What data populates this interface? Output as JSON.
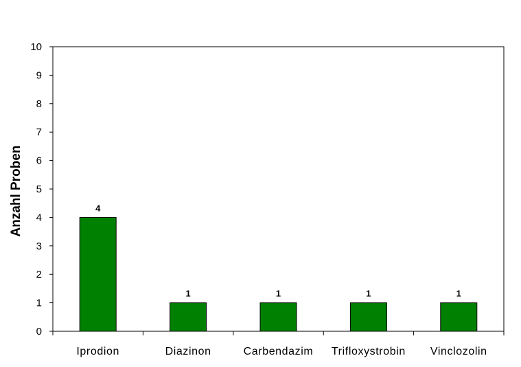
{
  "chart_data": {
    "type": "bar",
    "categories": [
      "Iprodion",
      "Diazinon",
      "Carbendazim",
      "Trifloxystrobin",
      "Vinclozolin"
    ],
    "values": [
      4,
      1,
      1,
      1,
      1
    ],
    "data_labels": [
      "4",
      "1",
      "1",
      "1",
      "1"
    ],
    "title": "",
    "xlabel": "",
    "ylabel": "Anzahl Proben",
    "ylim": [
      0,
      10
    ],
    "yticks": [
      0,
      1,
      2,
      3,
      4,
      5,
      6,
      7,
      8,
      9,
      10
    ],
    "grid": false,
    "legend": "none",
    "bar_color": "#008000"
  }
}
